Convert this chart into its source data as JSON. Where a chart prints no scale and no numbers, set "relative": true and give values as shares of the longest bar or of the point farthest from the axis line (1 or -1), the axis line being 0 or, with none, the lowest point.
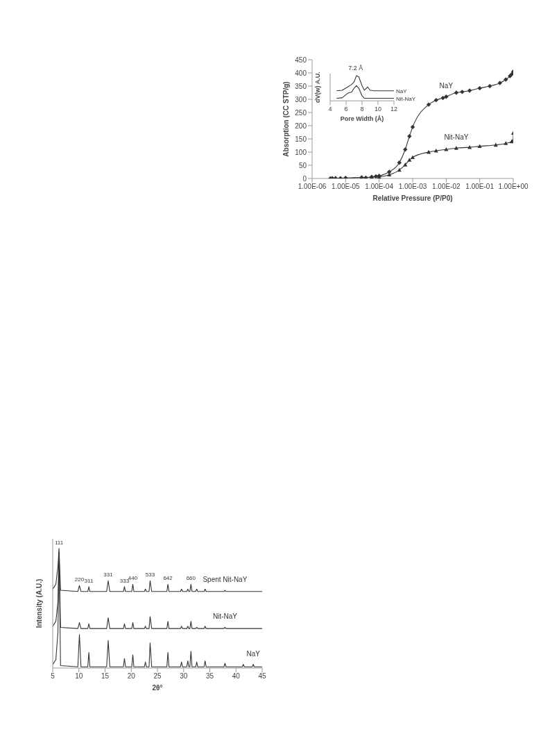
{
  "chart_data": [
    {
      "type": "line",
      "xlabel": "Relative Pressure (P/P0)",
      "ylabel": "Absorption (CC STP/g)",
      "log": "x",
      "xlim": [
        1e-06,
        1
      ],
      "xticks": [
        {
          "value": 1e-06,
          "label": "1.00E-06"
        },
        {
          "value": 1e-05,
          "label": "1.00E-05"
        },
        {
          "value": 0.0001,
          "label": "1.00E-04"
        },
        {
          "value": 0.001,
          "label": "1.00E-03"
        },
        {
          "value": 0.01,
          "label": "1.00E-02"
        },
        {
          "value": 0.1,
          "label": "1.00E-01"
        },
        {
          "value": 1,
          "label": "1.00E+00"
        }
      ],
      "ylim": [
        0,
        450
      ],
      "yticks": [
        0,
        50,
        100,
        150,
        200,
        250,
        300,
        350,
        400,
        450
      ],
      "grid": false,
      "legend": false,
      "series": [
        {
          "name": "NaY",
          "color": "#333333",
          "marker": "diamond",
          "x": [
            3.5e-06,
            4e-06,
            5e-06,
            7e-06,
            1e-05,
            3e-05,
            4e-05,
            6e-05,
            8e-05,
            0.0001,
            0.0002,
            0.0004,
            0.0006,
            0.0008,
            0.001,
            0.003,
            0.005,
            0.008,
            0.01,
            0.02,
            0.03,
            0.05,
            0.1,
            0.2,
            0.4,
            0.6,
            0.8,
            0.9,
            1
          ],
          "values": [
            0,
            1,
            1,
            1,
            2,
            4,
            3,
            6,
            8,
            10,
            25,
            60,
            110,
            160,
            195,
            280,
            297,
            305,
            310,
            325,
            328,
            333,
            342,
            350,
            362,
            375,
            388,
            395,
            405
          ]
        },
        {
          "name": "Nit-NaY",
          "color": "#333333",
          "marker": "triangle",
          "x": [
            3.5e-06,
            5e-06,
            1e-05,
            3e-05,
            6e-05,
            0.0001,
            0.0002,
            0.0004,
            0.0006,
            0.0008,
            0.001,
            0.003,
            0.005,
            0.01,
            0.02,
            0.05,
            0.1,
            0.3,
            0.6,
            0.9,
            1,
            1
          ],
          "values": [
            0,
            1,
            1,
            3,
            5,
            6,
            14,
            32,
            52,
            70,
            80,
            100,
            105,
            110,
            115,
            118,
            122,
            127,
            133,
            140,
            145,
            172
          ]
        }
      ]
    },
    {
      "type": "line",
      "xlabel": "Pore Width (Å)",
      "ylabel": "dV(w) A.U.",
      "relative": true,
      "xlim": [
        4,
        12
      ],
      "xticks": [
        4,
        6,
        8,
        10,
        12
      ],
      "grid": false,
      "legend": false,
      "annotations": [
        {
          "text": "7.2 Å",
          "x": 7.2,
          "y": 1.05
        }
      ],
      "series": [
        {
          "name": "NaY",
          "color": "#333333",
          "marker": "none",
          "x": [
            4.8,
            5.5,
            6.2,
            6.7,
            7.0,
            7.3,
            7.6,
            8.0,
            8.3,
            8.7,
            9.0,
            9.5,
            12
          ],
          "values": [
            0.4,
            0.42,
            0.55,
            0.65,
            0.75,
            1,
            0.95,
            0.6,
            0.42,
            0.55,
            0.42,
            0.4,
            0.4
          ]
        },
        {
          "name": "Nit-NaY",
          "color": "#333333",
          "marker": "none",
          "x": [
            4.8,
            5.5,
            6.2,
            6.7,
            7.0,
            7.3,
            7.6,
            8.0,
            8.3,
            12
          ],
          "values": [
            0.1,
            0.12,
            0.3,
            0.35,
            0.5,
            0.6,
            0.5,
            0.2,
            0.1,
            0.1
          ]
        }
      ]
    },
    {
      "type": "line",
      "xlabel": "2θ°",
      "ylabel": "Intensity (A.U.)",
      "relative": true,
      "xlim": [
        5,
        45
      ],
      "xticks": [
        5,
        10,
        15,
        20,
        25,
        30,
        35,
        40,
        45
      ],
      "grid": false,
      "legend": false,
      "annotations": [
        {
          "text": "111",
          "x": 6.2,
          "y": 1
        },
        {
          "text": "220",
          "x": 10.1,
          "y": 0.69
        },
        {
          "text": "311",
          "x": 11.9,
          "y": 0.68
        },
        {
          "text": "331",
          "x": 15.6,
          "y": 0.73
        },
        {
          "text": "333",
          "x": 18.7,
          "y": 0.68
        },
        {
          "text": "440",
          "x": 20.3,
          "y": 0.7
        },
        {
          "text": "533",
          "x": 23.6,
          "y": 0.73
        },
        {
          "text": "642",
          "x": 27.0,
          "y": 0.7
        },
        {
          "text": "660",
          "x": 31.4,
          "y": 0.7
        }
      ],
      "series": [
        {
          "name": "Spent Nit-NaY",
          "color": "#333333",
          "marker": "none",
          "x": [
            5,
            5.6,
            6.0,
            6.2,
            6.5,
            9.8,
            10.1,
            10.4,
            11.7,
            11.9,
            12.1,
            15.3,
            15.6,
            15.9,
            18.5,
            18.7,
            18.9,
            20.1,
            20.3,
            20.5,
            22.5,
            22.7,
            22.9,
            23.4,
            23.6,
            23.9,
            26.8,
            27.0,
            27.2,
            29.4,
            29.6,
            29.8,
            30.6,
            30.8,
            31.0,
            31.2,
            31.4,
            31.6,
            32.3,
            32.5,
            32.7,
            33.9,
            34.1,
            34.3,
            37.7,
            37.9,
            38.1,
            45
          ],
          "values": [
            0.66,
            0.7,
            0.85,
            1,
            0.65,
            0.64,
            0.69,
            0.64,
            0.64,
            0.68,
            0.64,
            0.64,
            0.73,
            0.64,
            0.64,
            0.68,
            0.64,
            0.64,
            0.7,
            0.64,
            0.64,
            0.66,
            0.64,
            0.64,
            0.73,
            0.64,
            0.64,
            0.7,
            0.64,
            0.64,
            0.66,
            0.64,
            0.64,
            0.66,
            0.64,
            0.64,
            0.7,
            0.64,
            0.64,
            0.66,
            0.64,
            0.64,
            0.66,
            0.64,
            0.64,
            0.65,
            0.64,
            0.64
          ]
        },
        {
          "name": "Nit-NaY",
          "color": "#333333",
          "marker": "none",
          "x": [
            5,
            5.6,
            6.0,
            6.2,
            6.5,
            9.8,
            10.1,
            10.4,
            11.7,
            11.9,
            12.1,
            15.3,
            15.6,
            15.9,
            18.5,
            18.7,
            18.9,
            20.1,
            20.3,
            20.5,
            22.5,
            22.7,
            22.9,
            23.4,
            23.6,
            23.9,
            26.8,
            27.0,
            27.2,
            29.4,
            29.6,
            29.8,
            30.6,
            30.8,
            31.0,
            31.2,
            31.4,
            31.6,
            32.3,
            32.5,
            32.7,
            33.9,
            34.1,
            34.3,
            37.7,
            37.9,
            38.1,
            45
          ],
          "values": [
            0.35,
            0.39,
            0.55,
            0.97,
            0.34,
            0.33,
            0.38,
            0.33,
            0.33,
            0.37,
            0.33,
            0.33,
            0.42,
            0.33,
            0.33,
            0.37,
            0.33,
            0.33,
            0.38,
            0.33,
            0.33,
            0.35,
            0.33,
            0.33,
            0.43,
            0.33,
            0.33,
            0.39,
            0.33,
            0.33,
            0.35,
            0.33,
            0.33,
            0.35,
            0.33,
            0.33,
            0.39,
            0.33,
            0.33,
            0.34,
            0.33,
            0.33,
            0.35,
            0.33,
            0.33,
            0.34,
            0.33,
            0.33
          ]
        },
        {
          "name": "NaY",
          "color": "#333333",
          "marker": "none",
          "x": [
            5,
            5.6,
            6.0,
            6.2,
            6.5,
            9.8,
            10.1,
            10.4,
            11.7,
            11.9,
            12.1,
            15.3,
            15.6,
            15.9,
            18.5,
            18.7,
            18.9,
            20.1,
            20.3,
            20.5,
            22.5,
            22.7,
            22.9,
            23.4,
            23.6,
            23.9,
            26.8,
            27.0,
            27.2,
            29.4,
            29.6,
            29.8,
            30.6,
            30.8,
            31.0,
            31.2,
            31.4,
            31.6,
            32.3,
            32.5,
            32.7,
            33.9,
            34.1,
            34.3,
            37.7,
            37.9,
            38.1,
            41.2,
            41.4,
            41.6,
            43.1,
            43.3,
            43.5,
            45
          ],
          "values": [
            0.03,
            0.07,
            0.3,
            0.97,
            0.02,
            0.01,
            0.28,
            0.01,
            0.01,
            0.13,
            0.01,
            0.01,
            0.23,
            0.01,
            0.01,
            0.08,
            0.01,
            0.01,
            0.11,
            0.01,
            0.01,
            0.05,
            0.01,
            0.01,
            0.21,
            0.01,
            0.01,
            0.13,
            0.01,
            0.01,
            0.05,
            0.01,
            0.01,
            0.06,
            0.01,
            0.01,
            0.14,
            0.01,
            0.01,
            0.05,
            0.01,
            0.01,
            0.06,
            0.01,
            0.01,
            0.04,
            0.01,
            0.01,
            0.03,
            0.01,
            0.01,
            0.03,
            0.01,
            0.01
          ]
        }
      ]
    }
  ]
}
